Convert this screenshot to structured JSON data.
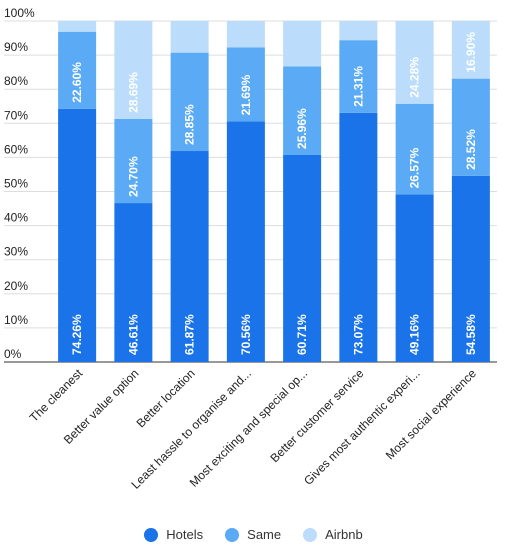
{
  "chart_data": {
    "type": "bar",
    "stacked": true,
    "categories": [
      "The cleanest",
      "Better value option",
      "Better location",
      "Least hassle to organise and...",
      "Most exciting and special op...",
      "Better customer service",
      "Gives most authentic experi...",
      "Most social experience"
    ],
    "series": [
      {
        "name": "Hotels",
        "color": "#1a73e8",
        "values": [
          74.26,
          46.61,
          61.87,
          70.56,
          60.71,
          73.07,
          49.16,
          54.58
        ],
        "labels": [
          "74.26%",
          "46.61%",
          "61.87%",
          "70.56%",
          "60.71%",
          "73.07%",
          "49.16%",
          "54.58%"
        ]
      },
      {
        "name": "Same",
        "color": "#5aaaf5",
        "values": [
          22.6,
          24.7,
          28.85,
          21.69,
          25.96,
          21.31,
          26.57,
          28.52
        ],
        "labels": [
          "22.60%",
          "24.70%",
          "28.85%",
          "21.69%",
          "25.96%",
          "21.31%",
          "26.57%",
          "28.52%"
        ]
      },
      {
        "name": "Airbnb",
        "color": "#bbdcfb",
        "values": [
          3.14,
          28.69,
          9.28,
          7.75,
          13.33,
          5.62,
          24.28,
          16.9
        ],
        "labels": [
          "",
          "28.69%",
          "",
          "",
          "",
          "",
          "24.28%",
          "16.90%"
        ]
      }
    ],
    "yticks": [
      "0%",
      "10%",
      "20%",
      "30%",
      "40%",
      "50%",
      "60%",
      "70%",
      "80%",
      "90%",
      "100%"
    ],
    "ylim": [
      0,
      100
    ],
    "grid": true,
    "legend": "bottom"
  }
}
